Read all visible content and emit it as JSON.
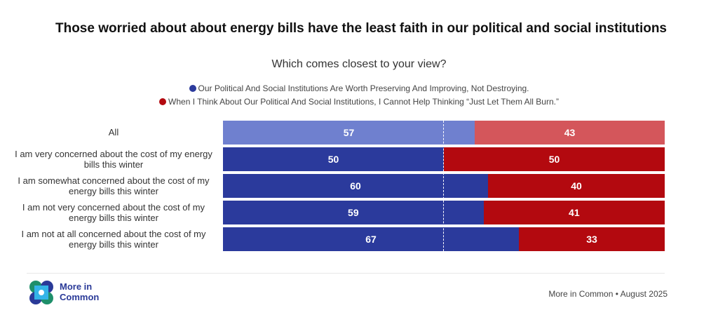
{
  "title": "Those worried about about energy bills have the least faith in our political and social institutions",
  "subtitle": "Which comes closest to your view?",
  "footer": {
    "brand": "More in Common",
    "source": "More in Common • August 2025"
  },
  "chart_data": {
    "type": "bar",
    "stacked": true,
    "orientation": "horizontal",
    "xlim": [
      0,
      100
    ],
    "reference_line": 50,
    "legend_position": "top",
    "categories": [
      "All",
      "I am very concerned about the cost of my energy bills this winter",
      "I am somewhat concerned about the cost of my energy bills this winter",
      "I am not very concerned about the cost of my energy bills this winter",
      "I am not at all concerned about the cost of my energy bills this winter"
    ],
    "series": [
      {
        "name": "Our Political And Social Institutions Are Worth Preserving And Improving, Not Destroying.",
        "values": [
          57,
          50,
          60,
          59,
          67
        ],
        "color": "#2b3a9c",
        "highlight_color": "#6f80cf"
      },
      {
        "name": "When I Think About Our Political And Social Institutions, I Cannot Help Thinking “Just Let Them All Burn.”",
        "values": [
          43,
          50,
          40,
          41,
          33
        ],
        "color": "#b3090f",
        "highlight_color": "#d4565b"
      }
    ]
  }
}
